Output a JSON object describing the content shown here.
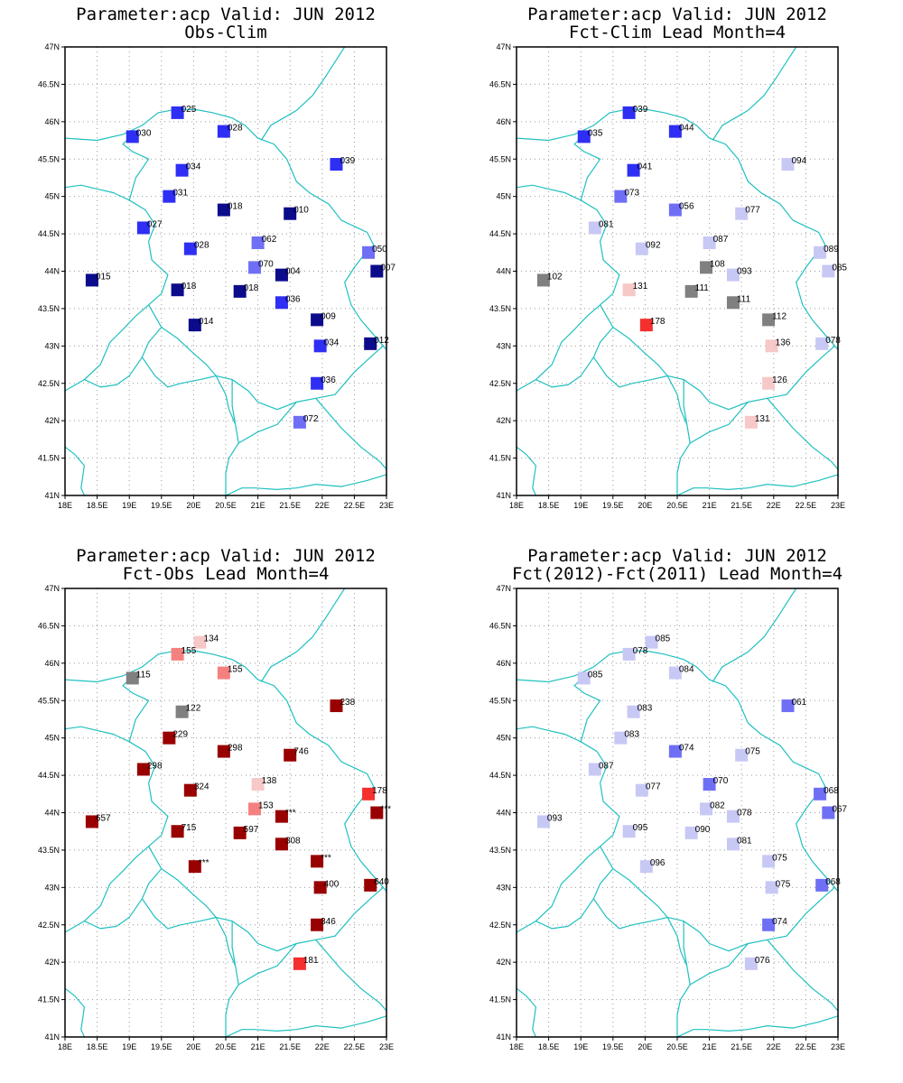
{
  "colors": {
    "dark_blue": "#0b0b8c",
    "blue": "#2e2ef5",
    "mid_blue": "#6f6ff5",
    "light_blue": "#c8c8f5",
    "grey": "#808080",
    "light_pink": "#f7c8c8",
    "pink": "#f58080",
    "red": "#f52e2e",
    "dark_red": "#990000",
    "border": "#20c0c0",
    "grid": "#999999"
  },
  "axes": {
    "x_ticks": [
      "18E",
      "18.5E",
      "19E",
      "19.5E",
      "20E",
      "20.5E",
      "21E",
      "21.5E",
      "22E",
      "22.5E",
      "23E"
    ],
    "y_ticks": [
      "41N",
      "41.5N",
      "42N",
      "42.5N",
      "43N",
      "43.5N",
      "44N",
      "44.5N",
      "45N",
      "45.5N",
      "46N",
      "46.5N",
      "47N"
    ],
    "xlim": [
      18,
      23
    ],
    "ylim": [
      41,
      47
    ]
  },
  "chart_data": [
    {
      "type": "scatter",
      "title": "Parameter:acp Valid: JUN 2012",
      "subtitle": "Obs-Clim",
      "points": [
        {
          "lon": 19.75,
          "lat": 46.12,
          "label": "025",
          "color": "blue"
        },
        {
          "lon": 20.47,
          "lat": 45.87,
          "label": "028",
          "color": "blue"
        },
        {
          "lon": 19.05,
          "lat": 45.8,
          "label": "030",
          "color": "blue"
        },
        {
          "lon": 19.82,
          "lat": 45.35,
          "label": "034",
          "color": "blue"
        },
        {
          "lon": 22.22,
          "lat": 45.43,
          "label": "039",
          "color": "blue"
        },
        {
          "lon": 19.62,
          "lat": 45.0,
          "label": "031",
          "color": "blue"
        },
        {
          "lon": 20.47,
          "lat": 44.82,
          "label": "018",
          "color": "dark_blue"
        },
        {
          "lon": 21.5,
          "lat": 44.77,
          "label": "010",
          "color": "dark_blue"
        },
        {
          "lon": 19.22,
          "lat": 44.58,
          "label": "027",
          "color": "blue"
        },
        {
          "lon": 19.95,
          "lat": 44.3,
          "label": "028",
          "color": "blue"
        },
        {
          "lon": 21.0,
          "lat": 44.38,
          "label": "062",
          "color": "mid_blue"
        },
        {
          "lon": 22.72,
          "lat": 44.25,
          "label": "050",
          "color": "mid_blue"
        },
        {
          "lon": 20.95,
          "lat": 44.05,
          "label": "070",
          "color": "mid_blue"
        },
        {
          "lon": 21.37,
          "lat": 43.95,
          "label": "004",
          "color": "dark_blue"
        },
        {
          "lon": 22.85,
          "lat": 44.0,
          "label": "007",
          "color": "dark_blue"
        },
        {
          "lon": 18.42,
          "lat": 43.88,
          "label": "015",
          "color": "dark_blue"
        },
        {
          "lon": 19.75,
          "lat": 43.75,
          "label": "018",
          "color": "dark_blue"
        },
        {
          "lon": 20.72,
          "lat": 43.73,
          "label": "018",
          "color": "dark_blue"
        },
        {
          "lon": 21.37,
          "lat": 43.58,
          "label": "036",
          "color": "blue"
        },
        {
          "lon": 21.92,
          "lat": 43.35,
          "label": "009",
          "color": "dark_blue"
        },
        {
          "lon": 20.02,
          "lat": 43.28,
          "label": "014",
          "color": "dark_blue"
        },
        {
          "lon": 21.97,
          "lat": 43.0,
          "label": "034",
          "color": "blue"
        },
        {
          "lon": 22.75,
          "lat": 43.03,
          "label": "012",
          "color": "dark_blue"
        },
        {
          "lon": 21.92,
          "lat": 42.5,
          "label": "036",
          "color": "blue"
        },
        {
          "lon": 21.65,
          "lat": 41.98,
          "label": "072",
          "color": "mid_blue"
        }
      ]
    },
    {
      "type": "scatter",
      "title": "Parameter:acp Valid: JUN 2012",
      "subtitle": "Fct-Clim Lead Month=4",
      "points": [
        {
          "lon": 19.75,
          "lat": 46.12,
          "label": "039",
          "color": "blue"
        },
        {
          "lon": 20.47,
          "lat": 45.87,
          "label": "044",
          "color": "blue"
        },
        {
          "lon": 19.05,
          "lat": 45.8,
          "label": "035",
          "color": "blue"
        },
        {
          "lon": 19.82,
          "lat": 45.35,
          "label": "041",
          "color": "blue"
        },
        {
          "lon": 22.22,
          "lat": 45.43,
          "label": "094",
          "color": "light_blue"
        },
        {
          "lon": 19.62,
          "lat": 45.0,
          "label": "073",
          "color": "mid_blue"
        },
        {
          "lon": 20.47,
          "lat": 44.82,
          "label": "056",
          "color": "mid_blue"
        },
        {
          "lon": 21.5,
          "lat": 44.77,
          "label": "077",
          "color": "light_blue"
        },
        {
          "lon": 19.22,
          "lat": 44.58,
          "label": "081",
          "color": "light_blue"
        },
        {
          "lon": 19.95,
          "lat": 44.3,
          "label": "092",
          "color": "light_blue"
        },
        {
          "lon": 21.0,
          "lat": 44.38,
          "label": "087",
          "color": "light_blue"
        },
        {
          "lon": 22.72,
          "lat": 44.25,
          "label": "089",
          "color": "light_blue"
        },
        {
          "lon": 20.95,
          "lat": 44.05,
          "label": "108",
          "color": "grey"
        },
        {
          "lon": 21.37,
          "lat": 43.95,
          "label": "093",
          "color": "light_blue"
        },
        {
          "lon": 22.85,
          "lat": 44.0,
          "label": "085",
          "color": "light_blue"
        },
        {
          "lon": 18.42,
          "lat": 43.88,
          "label": "102",
          "color": "grey"
        },
        {
          "lon": 19.75,
          "lat": 43.75,
          "label": "131",
          "color": "light_pink"
        },
        {
          "lon": 20.72,
          "lat": 43.73,
          "label": "111",
          "color": "grey"
        },
        {
          "lon": 21.37,
          "lat": 43.58,
          "label": "111",
          "color": "grey"
        },
        {
          "lon": 21.92,
          "lat": 43.35,
          "label": "112",
          "color": "grey"
        },
        {
          "lon": 20.02,
          "lat": 43.28,
          "label": "178",
          "color": "red"
        },
        {
          "lon": 21.97,
          "lat": 43.0,
          "label": "136",
          "color": "light_pink"
        },
        {
          "lon": 22.75,
          "lat": 43.03,
          "label": "078",
          "color": "light_blue"
        },
        {
          "lon": 21.92,
          "lat": 42.5,
          "label": "126",
          "color": "light_pink"
        },
        {
          "lon": 21.65,
          "lat": 41.98,
          "label": "131",
          "color": "light_pink"
        }
      ]
    },
    {
      "type": "scatter",
      "title": "Parameter:acp Valid: JUN 2012",
      "subtitle": "Fct-Obs Lead Month=4",
      "points": [
        {
          "lon": 20.1,
          "lat": 46.28,
          "label": "134",
          "color": "light_pink"
        },
        {
          "lon": 19.75,
          "lat": 46.12,
          "label": "155",
          "color": "pink"
        },
        {
          "lon": 20.47,
          "lat": 45.87,
          "label": "155",
          "color": "pink"
        },
        {
          "lon": 19.05,
          "lat": 45.8,
          "label": "115",
          "color": "grey"
        },
        {
          "lon": 19.82,
          "lat": 45.35,
          "label": "122",
          "color": "grey"
        },
        {
          "lon": 22.22,
          "lat": 45.43,
          "label": "238",
          "color": "dark_red"
        },
        {
          "lon": 19.62,
          "lat": 45.0,
          "label": "229",
          "color": "dark_red"
        },
        {
          "lon": 20.47,
          "lat": 44.82,
          "label": "298",
          "color": "dark_red"
        },
        {
          "lon": 21.5,
          "lat": 44.77,
          "label": "746",
          "color": "dark_red"
        },
        {
          "lon": 19.22,
          "lat": 44.58,
          "label": "298",
          "color": "dark_red"
        },
        {
          "lon": 19.95,
          "lat": 44.3,
          "label": "324",
          "color": "dark_red"
        },
        {
          "lon": 21.0,
          "lat": 44.38,
          "label": "138",
          "color": "light_pink"
        },
        {
          "lon": 22.72,
          "lat": 44.25,
          "label": "178",
          "color": "red"
        },
        {
          "lon": 20.95,
          "lat": 44.05,
          "label": "153",
          "color": "pink"
        },
        {
          "lon": 21.37,
          "lat": 43.95,
          "label": "***",
          "color": "dark_red"
        },
        {
          "lon": 22.85,
          "lat": 44.0,
          "label": "***",
          "color": "dark_red"
        },
        {
          "lon": 18.42,
          "lat": 43.88,
          "label": "657",
          "color": "dark_red"
        },
        {
          "lon": 19.75,
          "lat": 43.75,
          "label": "715",
          "color": "dark_red"
        },
        {
          "lon": 20.72,
          "lat": 43.73,
          "label": "597",
          "color": "dark_red"
        },
        {
          "lon": 21.37,
          "lat": 43.58,
          "label": "308",
          "color": "dark_red"
        },
        {
          "lon": 21.92,
          "lat": 43.35,
          "label": "***",
          "color": "dark_red"
        },
        {
          "lon": 20.02,
          "lat": 43.28,
          "label": "***",
          "color": "dark_red"
        },
        {
          "lon": 21.97,
          "lat": 43.0,
          "label": "400",
          "color": "dark_red"
        },
        {
          "lon": 22.75,
          "lat": 43.03,
          "label": "640",
          "color": "dark_red"
        },
        {
          "lon": 21.92,
          "lat": 42.5,
          "label": "346",
          "color": "dark_red"
        },
        {
          "lon": 21.65,
          "lat": 41.98,
          "label": "181",
          "color": "red"
        }
      ]
    },
    {
      "type": "scatter",
      "title": "Parameter:acp Valid: JUN 2012",
      "subtitle": "Fct(2012)-Fct(2011) Lead Month=4",
      "points": [
        {
          "lon": 20.1,
          "lat": 46.28,
          "label": "085",
          "color": "light_blue"
        },
        {
          "lon": 19.75,
          "lat": 46.12,
          "label": "078",
          "color": "light_blue"
        },
        {
          "lon": 20.47,
          "lat": 45.87,
          "label": "084",
          "color": "light_blue"
        },
        {
          "lon": 19.05,
          "lat": 45.8,
          "label": "085",
          "color": "light_blue"
        },
        {
          "lon": 19.82,
          "lat": 45.35,
          "label": "083",
          "color": "light_blue"
        },
        {
          "lon": 22.22,
          "lat": 45.43,
          "label": "061",
          "color": "mid_blue"
        },
        {
          "lon": 19.62,
          "lat": 45.0,
          "label": "083",
          "color": "light_blue"
        },
        {
          "lon": 20.47,
          "lat": 44.82,
          "label": "074",
          "color": "mid_blue"
        },
        {
          "lon": 21.5,
          "lat": 44.77,
          "label": "075",
          "color": "light_blue"
        },
        {
          "lon": 19.22,
          "lat": 44.58,
          "label": "087",
          "color": "light_blue"
        },
        {
          "lon": 19.95,
          "lat": 44.3,
          "label": "077",
          "color": "light_blue"
        },
        {
          "lon": 21.0,
          "lat": 44.38,
          "label": "070",
          "color": "mid_blue"
        },
        {
          "lon": 22.72,
          "lat": 44.25,
          "label": "068",
          "color": "mid_blue"
        },
        {
          "lon": 20.95,
          "lat": 44.05,
          "label": "082",
          "color": "light_blue"
        },
        {
          "lon": 21.37,
          "lat": 43.95,
          "label": "078",
          "color": "light_blue"
        },
        {
          "lon": 22.85,
          "lat": 44.0,
          "label": "067",
          "color": "mid_blue"
        },
        {
          "lon": 18.42,
          "lat": 43.88,
          "label": "093",
          "color": "light_blue"
        },
        {
          "lon": 19.75,
          "lat": 43.75,
          "label": "095",
          "color": "light_blue"
        },
        {
          "lon": 20.72,
          "lat": 43.73,
          "label": "090",
          "color": "light_blue"
        },
        {
          "lon": 21.37,
          "lat": 43.58,
          "label": "081",
          "color": "light_blue"
        },
        {
          "lon": 21.92,
          "lat": 43.35,
          "label": "075",
          "color": "light_blue"
        },
        {
          "lon": 20.02,
          "lat": 43.28,
          "label": "096",
          "color": "light_blue"
        },
        {
          "lon": 21.97,
          "lat": 43.0,
          "label": "075",
          "color": "light_blue"
        },
        {
          "lon": 22.75,
          "lat": 43.03,
          "label": "068",
          "color": "mid_blue"
        },
        {
          "lon": 21.92,
          "lat": 42.5,
          "label": "074",
          "color": "mid_blue"
        },
        {
          "lon": 21.65,
          "lat": 41.98,
          "label": "076",
          "color": "light_blue"
        }
      ]
    }
  ]
}
